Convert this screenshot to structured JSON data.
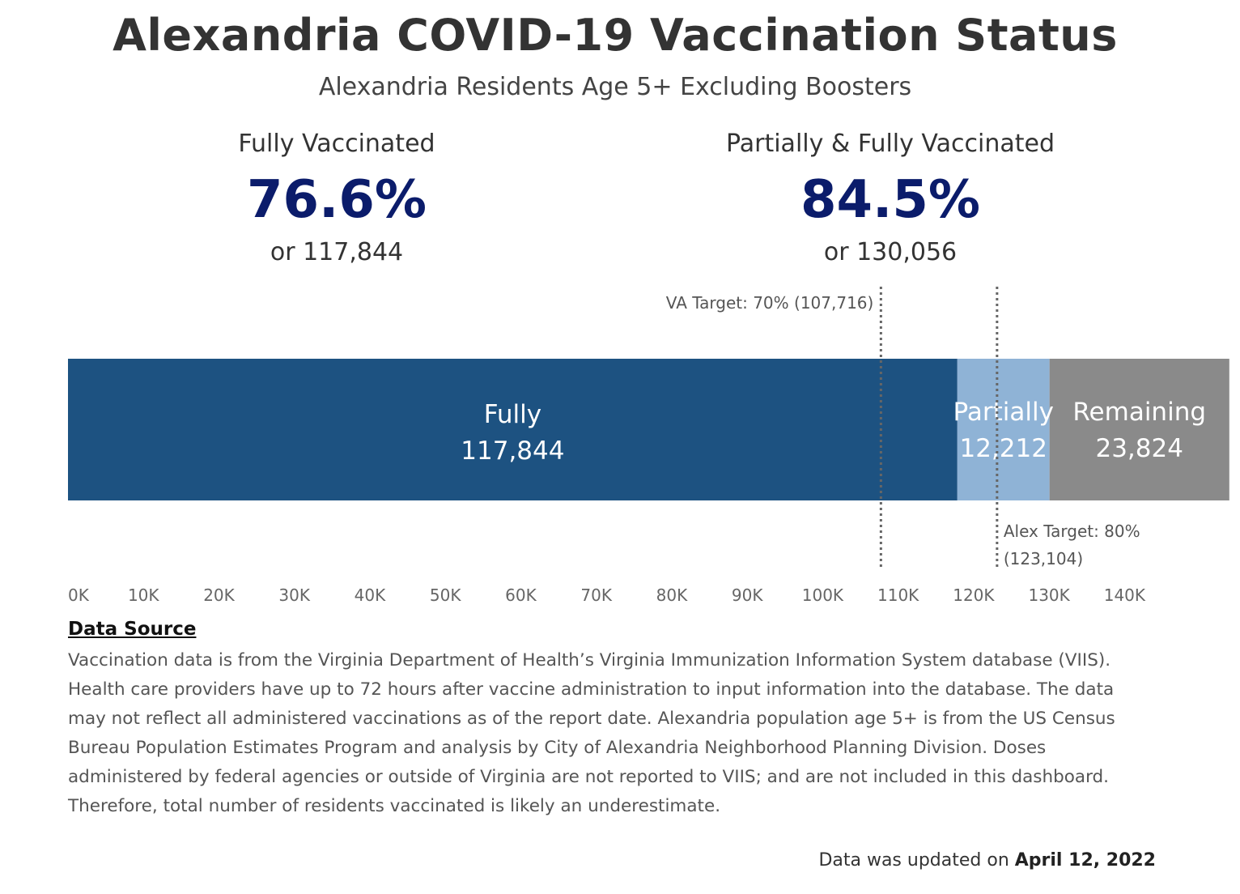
{
  "title": "Alexandria COVID-19 Vaccination Status",
  "subtitle": "Alexandria Residents Age 5+ Excluding Boosters",
  "kpis": {
    "fully": {
      "label": "Fully Vaccinated",
      "value": "76.6%",
      "count": "or 117,844"
    },
    "partial_and_fully": {
      "label": "Partially & Fully Vaccinated",
      "value": "84.5%",
      "count": "or 130,056"
    }
  },
  "colors": {
    "kpi_value": "#0b1c6b",
    "fully": "#1d5281",
    "partially": "#8fb3d6",
    "remaining": "#8a8a8a",
    "reference_line": "#666666"
  },
  "chart_data": {
    "type": "bar",
    "orientation": "horizontal",
    "stacked": true,
    "xlim": [
      0,
      145000
    ],
    "x_ticks": [
      0,
      10000,
      20000,
      30000,
      40000,
      50000,
      60000,
      70000,
      80000,
      90000,
      100000,
      110000,
      120000,
      130000,
      140000
    ],
    "x_tick_labels": [
      "0K",
      "10K",
      "20K",
      "30K",
      "40K",
      "50K",
      "60K",
      "70K",
      "80K",
      "90K",
      "100K",
      "110K",
      "120K",
      "130K",
      "140K"
    ],
    "grid": false,
    "segments": [
      {
        "name": "Fully",
        "value": 117844,
        "value_label": "117,844"
      },
      {
        "name": "Partially",
        "value": 12212,
        "value_label": "12,212"
      },
      {
        "name": "Remaining",
        "value": 23824,
        "value_label": "23,824"
      }
    ],
    "reference_lines": [
      {
        "value": 107716,
        "label": "VA Target: 70% (107,716)",
        "label_position": "top-left"
      },
      {
        "value": 123104,
        "label_lines": [
          "Alex Target: 80%",
          "(123,104)"
        ],
        "label_position": "bottom-right"
      }
    ]
  },
  "data_source": {
    "heading": "Data Source",
    "text": "Vaccination data is from the Virginia Department of Health’s Virginia Immunization Information System database (VIIS). Health care providers have up to 72 hours after vaccine administration to input information into the database. The data may not reflect all administered vaccinations as of the report date. Alexandria population age 5+ is from the US Census Bureau Population Estimates Program and analysis by City of Alexandria Neighborhood Planning Division. Doses administered by federal agencies or outside of Virginia are not reported to VIIS; and are not included in this dashboard. Therefore, total number of residents vaccinated is likely an underestimate."
  },
  "footer": {
    "prefix": "Data was updated on ",
    "date": "April 12, 2022"
  }
}
